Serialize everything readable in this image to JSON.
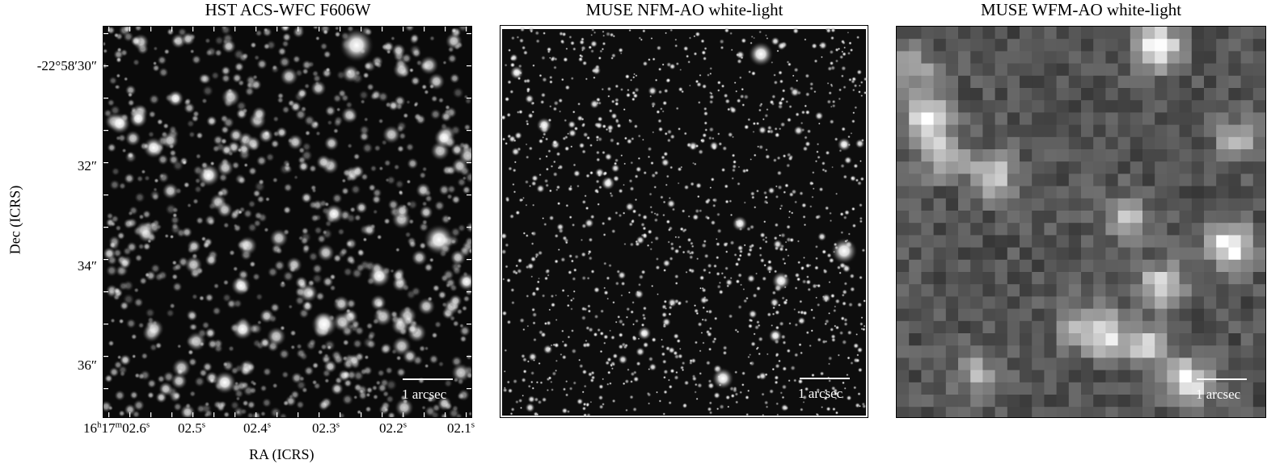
{
  "panels": [
    {
      "title": "HST ACS-WFC F606W",
      "scalebar_label": "1 arcsec",
      "image_description_name": "hst-image"
    },
    {
      "title": "MUSE NFM-AO white-light",
      "scalebar_label": "1 arcsec",
      "image_description_name": "muse-nfm-image"
    },
    {
      "title": "MUSE WFM-AO white-light",
      "scalebar_label": "1 arcsec",
      "image_description_name": "muse-wfm-image"
    }
  ],
  "axes": {
    "ylabel": "Dec (ICRS)",
    "xlabel": "RA (ICRS)",
    "yticks": [
      "-22°58′30″",
      "32″",
      "34″",
      "36″"
    ],
    "xticks": [
      {
        "main": "16",
        "h": "h",
        "m_val": "17",
        "m": "m",
        "s_val": "02.6",
        "s": "s"
      },
      {
        "s_val": "02.5",
        "s": "s"
      },
      {
        "s_val": "02.4",
        "s": "s"
      },
      {
        "s_val": "02.3",
        "s": "s"
      },
      {
        "s_val": "02.2",
        "s": "s"
      },
      {
        "s_val": "02.1",
        "s": "s"
      }
    ]
  },
  "colors": {
    "background": "#080808",
    "star": "#ffffff",
    "text": "#000000"
  }
}
